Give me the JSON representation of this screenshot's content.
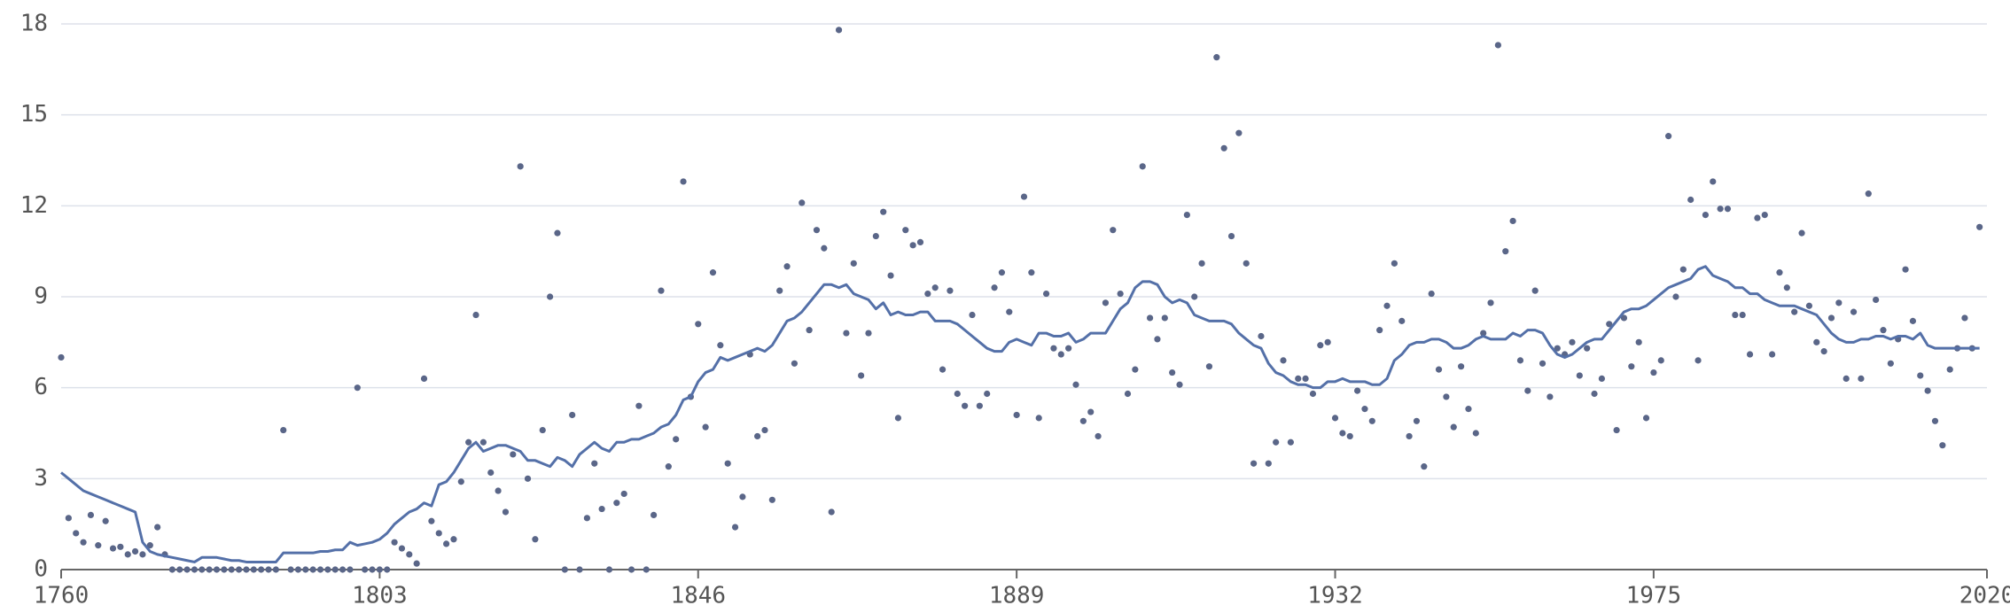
{
  "chart_data": {
    "type": "scatter",
    "x": [
      1760,
      1761,
      1762,
      1763,
      1764,
      1765,
      1766,
      1767,
      1768,
      1769,
      1770,
      1771,
      1772,
      1773,
      1774,
      1775,
      1776,
      1777,
      1778,
      1779,
      1780,
      1781,
      1782,
      1783,
      1784,
      1785,
      1786,
      1787,
      1788,
      1789,
      1790,
      1791,
      1792,
      1793,
      1794,
      1795,
      1796,
      1797,
      1798,
      1799,
      1800,
      1801,
      1802,
      1803,
      1804,
      1805,
      1806,
      1807,
      1808,
      1809,
      1810,
      1811,
      1812,
      1813,
      1814,
      1815,
      1816,
      1817,
      1818,
      1819,
      1820,
      1821,
      1822,
      1823,
      1824,
      1825,
      1826,
      1827,
      1828,
      1829,
      1830,
      1831,
      1832,
      1833,
      1834,
      1835,
      1836,
      1837,
      1838,
      1839,
      1840,
      1841,
      1842,
      1843,
      1844,
      1845,
      1846,
      1847,
      1848,
      1849,
      1850,
      1851,
      1852,
      1853,
      1854,
      1855,
      1856,
      1857,
      1858,
      1859,
      1860,
      1861,
      1862,
      1863,
      1864,
      1865,
      1866,
      1867,
      1868,
      1869,
      1870,
      1871,
      1872,
      1873,
      1874,
      1875,
      1876,
      1877,
      1878,
      1879,
      1880,
      1881,
      1882,
      1883,
      1884,
      1885,
      1886,
      1887,
      1888,
      1889,
      1890,
      1891,
      1892,
      1893,
      1894,
      1895,
      1896,
      1897,
      1898,
      1899,
      1900,
      1901,
      1902,
      1903,
      1904,
      1905,
      1906,
      1907,
      1908,
      1909,
      1910,
      1911,
      1912,
      1913,
      1914,
      1915,
      1916,
      1917,
      1918,
      1919,
      1920,
      1921,
      1922,
      1923,
      1924,
      1925,
      1926,
      1927,
      1928,
      1929,
      1930,
      1931,
      1932,
      1933,
      1934,
      1935,
      1936,
      1937,
      1938,
      1939,
      1940,
      1941,
      1942,
      1943,
      1944,
      1945,
      1946,
      1947,
      1948,
      1949,
      1950,
      1951,
      1952,
      1953,
      1954,
      1955,
      1956,
      1957,
      1958,
      1959,
      1960,
      1961,
      1962,
      1963,
      1964,
      1965,
      1966,
      1967,
      1968,
      1969,
      1970,
      1971,
      1972,
      1973,
      1974,
      1975,
      1976,
      1977,
      1978,
      1979,
      1980,
      1981,
      1982,
      1983,
      1984,
      1985,
      1986,
      1987,
      1988,
      1989,
      1990,
      1991,
      1992,
      1993,
      1994,
      1995,
      1996,
      1997,
      1998,
      1999,
      2000,
      2001,
      2002,
      2003,
      2004,
      2005,
      2006,
      2007,
      2008,
      2009,
      2010,
      2011,
      2012,
      2013,
      2014,
      2015,
      2016,
      2017,
      2018,
      2019
    ],
    "series": [
      {
        "type": "scatter",
        "color": "#5a6688",
        "values": [
          7.0,
          1.7,
          1.2,
          0.9,
          1.8,
          0.8,
          1.6,
          0.7,
          0.75,
          0.5,
          0.6,
          0.5,
          0.8,
          1.4,
          0.5,
          0,
          0,
          0,
          0,
          0,
          0,
          0,
          0,
          0,
          0,
          0,
          0,
          0,
          0,
          0,
          4.6,
          0,
          0,
          0,
          0,
          0,
          0,
          0,
          0,
          0,
          6.0,
          0,
          0,
          0,
          0,
          0.9,
          0.7,
          0.5,
          0.2,
          6.3,
          1.6,
          1.2,
          0.85,
          1.0,
          2.9,
          4.2,
          8.4,
          4.2,
          3.2,
          2.6,
          1.9,
          3.8,
          13.3,
          3.0,
          1.0,
          4.6,
          9.0,
          11.1,
          0,
          5.1,
          0,
          1.7,
          3.5,
          2.0,
          0,
          2.2,
          2.5,
          0,
          5.4,
          0,
          1.8,
          9.2,
          3.4,
          4.3,
          12.8,
          5.7,
          8.1,
          4.7,
          9.8,
          7.4,
          3.5,
          1.4,
          2.4,
          7.1,
          4.4,
          4.6,
          2.3,
          9.2,
          10.0,
          6.8,
          12.1,
          7.9,
          11.2,
          10.6,
          1.9,
          17.8,
          7.8,
          10.1,
          6.4,
          7.8,
          11.0,
          11.8,
          9.7,
          5.0,
          11.2,
          10.7,
          10.8,
          9.1,
          9.3,
          6.6,
          9.2,
          5.8,
          5.4,
          8.4,
          5.4,
          5.8,
          9.3,
          9.8,
          8.5,
          5.1,
          12.3,
          9.8,
          5.0,
          9.1,
          7.3,
          7.1,
          7.3,
          6.1,
          4.9,
          5.2,
          4.4,
          8.8,
          11.2,
          9.1,
          5.8,
          6.6,
          13.3,
          8.3,
          7.6,
          8.3,
          6.5,
          6.1,
          11.7,
          9.0,
          10.1,
          6.7,
          16.9,
          13.9,
          11.0,
          14.4,
          10.1,
          3.5,
          7.7,
          3.5,
          4.2,
          6.9,
          4.2,
          6.3,
          6.3,
          5.8,
          7.4,
          7.5,
          5.0,
          4.5,
          4.4,
          5.9,
          5.3,
          4.9,
          7.9,
          8.7,
          10.1,
          8.2,
          4.4,
          4.9,
          3.4,
          9.1,
          6.6,
          5.7,
          4.7,
          6.7,
          5.3,
          4.5,
          7.8,
          8.8,
          17.3,
          10.5,
          11.5,
          6.9,
          5.9,
          9.2,
          6.8,
          5.7,
          7.3,
          7.1,
          7.5,
          6.4,
          7.3,
          5.8,
          6.3,
          8.1,
          4.6,
          8.3,
          6.7,
          7.5,
          5.0,
          6.5,
          6.9,
          14.3,
          9.0,
          9.9,
          12.2,
          6.9,
          11.7,
          12.8,
          11.9,
          11.9,
          8.4,
          8.4,
          7.1,
          11.6,
          11.7,
          7.1,
          9.8,
          9.3,
          8.5,
          11.1,
          8.7,
          7.5,
          7.2,
          8.3,
          8.8,
          6.3,
          8.5,
          6.3,
          12.4,
          8.9,
          7.9,
          6.8,
          7.6,
          9.9,
          8.2,
          6.4,
          5.9,
          4.9,
          4.1,
          6.6,
          7.3,
          8.3,
          7.3,
          11.3
        ]
      },
      {
        "type": "line",
        "color": "#5470a8",
        "values": [
          3.2,
          3.0,
          2.8,
          2.6,
          2.5,
          2.4,
          2.3,
          2.2,
          2.1,
          2.0,
          1.9,
          0.9,
          0.6,
          0.5,
          0.45,
          0.4,
          0.35,
          0.3,
          0.25,
          0.4,
          0.4,
          0.4,
          0.35,
          0.3,
          0.3,
          0.25,
          0.25,
          0.25,
          0.25,
          0.25,
          0.55,
          0.55,
          0.55,
          0.55,
          0.55,
          0.6,
          0.6,
          0.65,
          0.65,
          0.9,
          0.8,
          0.85,
          0.9,
          1.0,
          1.2,
          1.5,
          1.7,
          1.9,
          2.0,
          2.2,
          2.1,
          2.8,
          2.9,
          3.2,
          3.6,
          4.0,
          4.2,
          3.9,
          4.0,
          4.1,
          4.1,
          4.0,
          3.9,
          3.6,
          3.6,
          3.5,
          3.4,
          3.7,
          3.6,
          3.4,
          3.8,
          4.0,
          4.2,
          4.0,
          3.9,
          4.2,
          4.2,
          4.3,
          4.3,
          4.4,
          4.5,
          4.7,
          4.8,
          5.1,
          5.6,
          5.7,
          6.2,
          6.5,
          6.6,
          7.0,
          6.9,
          7.0,
          7.1,
          7.2,
          7.3,
          7.2,
          7.4,
          7.8,
          8.2,
          8.3,
          8.5,
          8.8,
          9.1,
          9.4,
          9.4,
          9.3,
          9.4,
          9.1,
          9.0,
          8.9,
          8.6,
          8.8,
          8.4,
          8.5,
          8.4,
          8.4,
          8.5,
          8.5,
          8.2,
          8.2,
          8.2,
          8.1,
          7.9,
          7.7,
          7.5,
          7.3,
          7.2,
          7.2,
          7.5,
          7.6,
          7.5,
          7.4,
          7.8,
          7.8,
          7.7,
          7.7,
          7.8,
          7.5,
          7.6,
          7.8,
          7.8,
          7.8,
          8.2,
          8.6,
          8.8,
          9.3,
          9.5,
          9.5,
          9.4,
          9.0,
          8.8,
          8.9,
          8.8,
          8.4,
          8.3,
          8.2,
          8.2,
          8.2,
          8.1,
          7.8,
          7.6,
          7.4,
          7.3,
          6.8,
          6.5,
          6.4,
          6.2,
          6.1,
          6.1,
          6.0,
          6.0,
          6.2,
          6.2,
          6.3,
          6.2,
          6.2,
          6.2,
          6.1,
          6.1,
          6.3,
          6.9,
          7.1,
          7.4,
          7.5,
          7.5,
          7.6,
          7.6,
          7.5,
          7.3,
          7.3,
          7.4,
          7.6,
          7.7,
          7.6,
          7.6,
          7.6,
          7.8,
          7.7,
          7.9,
          7.9,
          7.8,
          7.4,
          7.1,
          7.0,
          7.1,
          7.3,
          7.5,
          7.6,
          7.6,
          7.9,
          8.2,
          8.5,
          8.6,
          8.6,
          8.7,
          8.9,
          9.1,
          9.3,
          9.4,
          9.5,
          9.6,
          9.9,
          10.0,
          9.7,
          9.6,
          9.5,
          9.3,
          9.3,
          9.1,
          9.1,
          8.9,
          8.8,
          8.7,
          8.7,
          8.7,
          8.6,
          8.5,
          8.4,
          8.1,
          7.8,
          7.6,
          7.5,
          7.5,
          7.6,
          7.6,
          7.7,
          7.7,
          7.6,
          7.7,
          7.7,
          7.6,
          7.8,
          7.4,
          7.3,
          7.3,
          7.3,
          7.3,
          7.3,
          7.3,
          7.3
        ]
      }
    ],
    "xlim": [
      1760,
      2020
    ],
    "xticks": [
      1760,
      1803,
      1846,
      1889,
      1932,
      1975,
      2020
    ],
    "ylim": [
      0,
      18
    ],
    "yticks": [
      0,
      3,
      6,
      9,
      12,
      15,
      18
    ],
    "grid": true
  }
}
